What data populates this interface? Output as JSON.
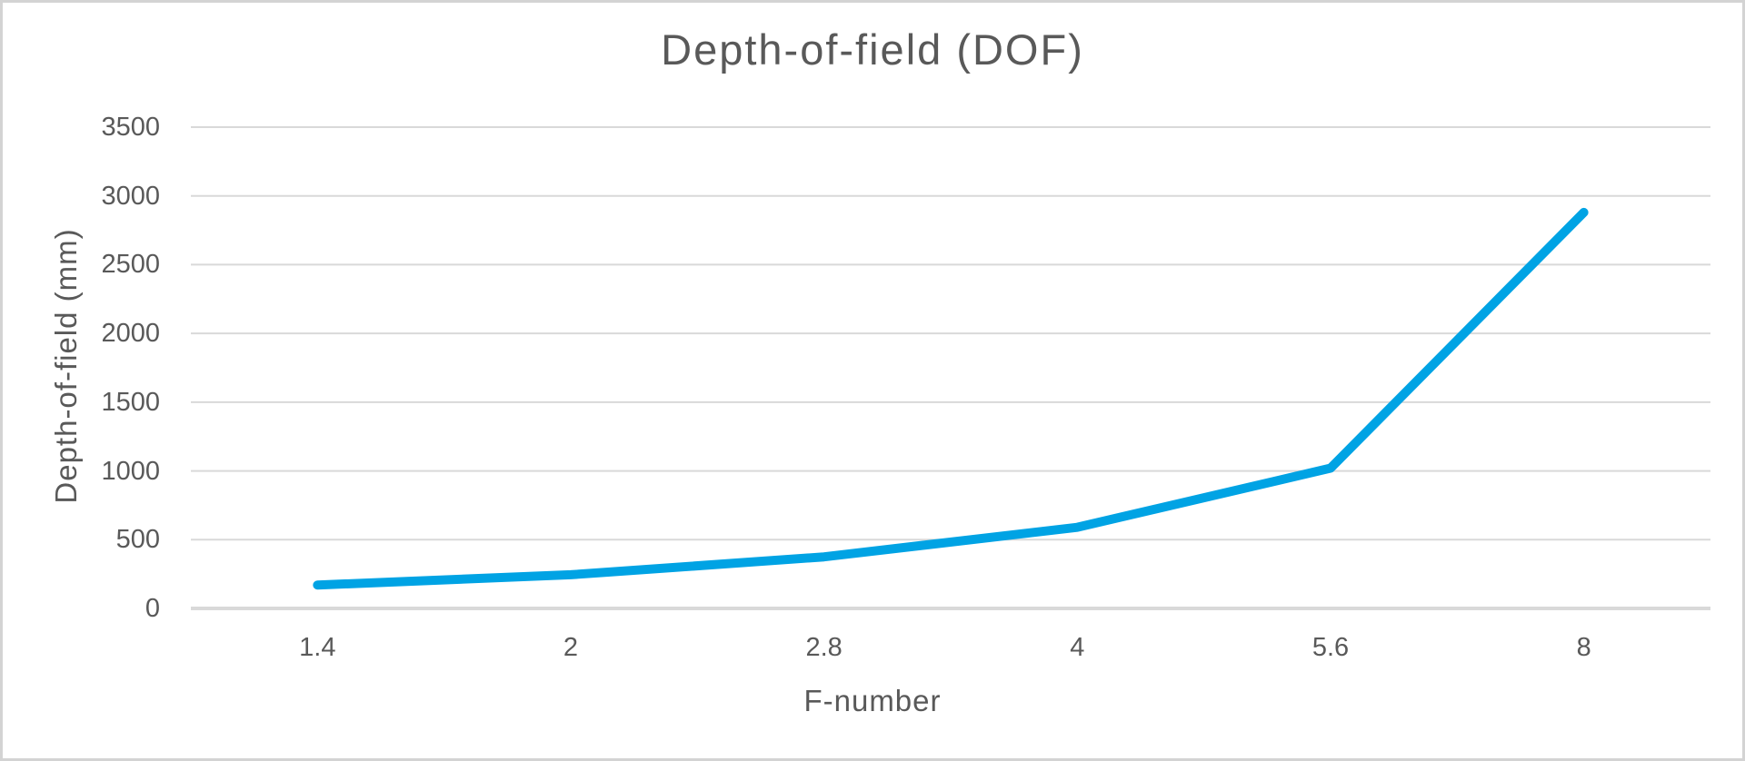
{
  "chart_data": {
    "type": "line",
    "title": "Depth-of-field (DOF)",
    "xlabel": "F-number",
    "ylabel": "Depth-of-field (mm)",
    "categories": [
      "1.4",
      "2",
      "2.8",
      "4",
      "5.6",
      "8"
    ],
    "series": [
      {
        "name": "Depth-of-field",
        "values": [
          170,
          245,
          375,
          590,
          1020,
          2880
        ]
      }
    ],
    "ylim": [
      0,
      3500
    ],
    "yticks": [
      0,
      500,
      1000,
      1500,
      2000,
      2500,
      3000,
      3500
    ],
    "grid": "horizontal",
    "legend_position": "none",
    "colors": {
      "line": "#00A3E4",
      "gridline": "#D9D9D9",
      "axis_line": "#D9D9D9",
      "text": "#595959",
      "background": "#FFFFFF",
      "frame_border": "#D3D3D3"
    }
  }
}
